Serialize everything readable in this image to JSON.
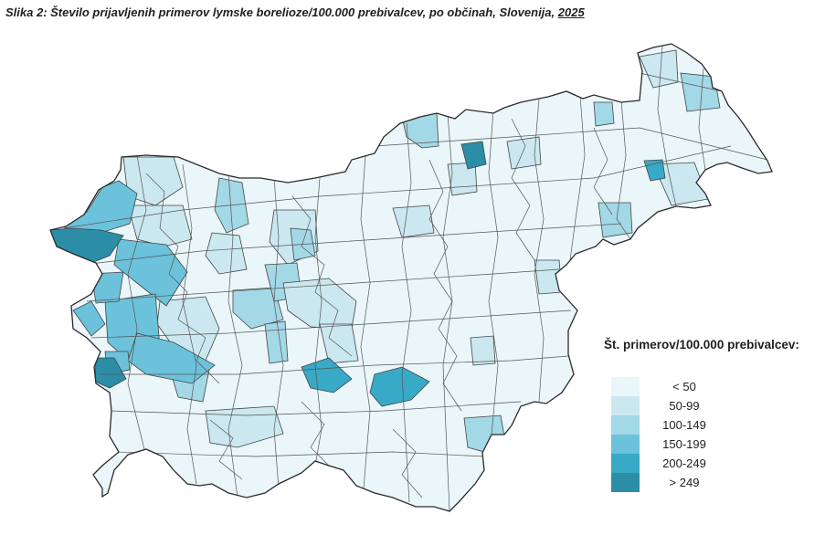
{
  "title": {
    "text": "Slika 2: Število prijavljenih primerov lymske borelioze/100.000 prebivalcev, po občinah, Slovenija, ",
    "year": "2025"
  },
  "legend": {
    "title": "Št. primerov/100.000 prebivalcev:",
    "classes": [
      {
        "label": "< 50",
        "color": "#eaf6fa"
      },
      {
        "label": "50-99",
        "color": "#cbe8f0"
      },
      {
        "label": "100-149",
        "color": "#a3d8e7"
      },
      {
        "label": "150-199",
        "color": "#6cc2da"
      },
      {
        "label": "200-249",
        "color": "#38a9c6"
      },
      {
        "label": "> 249",
        "color": "#2b8ea6"
      }
    ]
  }
}
